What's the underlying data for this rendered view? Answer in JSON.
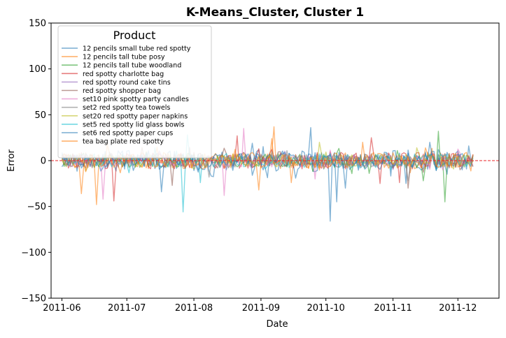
{
  "chart_data": {
    "type": "line",
    "title": "K-Means_Cluster, Cluster 1",
    "xlabel": "Date",
    "ylabel": "Error",
    "xlim": [
      "2011-05-27",
      "2011-12-20"
    ],
    "ylim": [
      -150,
      150
    ],
    "x_ticks": [
      "2011-06-01",
      "2011-07-01",
      "2011-08-01",
      "2011-09-01",
      "2011-10-01",
      "2011-11-01",
      "2011-12-01"
    ],
    "x_tick_labels": [
      "2011-06",
      "2011-07",
      "2011-08",
      "2011-09",
      "2011-10",
      "2011-11",
      "2011-12"
    ],
    "y_ticks": [
      -150,
      -100,
      -50,
      0,
      50,
      100,
      150
    ],
    "y_tick_labels": [
      "−150",
      "−100",
      "−50",
      "0",
      "50",
      "100",
      "150"
    ],
    "reference_line": {
      "y": 0,
      "color": "#e8262a",
      "style": "dashed"
    },
    "grid": false,
    "legend": {
      "title": "Product",
      "placement": "top-left"
    },
    "series": [
      {
        "name": "12 pencils small tube red spotty",
        "color": "#1f77b4",
        "start": "2011-06-01",
        "end": "2011-12-08",
        "amp": 12,
        "seed": 3,
        "spikes": [
          [
            "2011-09-24",
            36
          ],
          [
            "2011-10-03",
            -66
          ],
          [
            "2011-10-06",
            -45
          ],
          [
            "2011-10-10",
            -30
          ],
          [
            "2011-11-07",
            -25
          ],
          [
            "2011-11-22",
            12
          ]
        ]
      },
      {
        "name": "12 pencils tall tube posy",
        "color": "#ff7f0e",
        "start": "2011-06-01",
        "end": "2011-12-08",
        "amp": 9,
        "seed": 7,
        "spikes": [
          [
            "2011-06-10",
            -36
          ],
          [
            "2011-06-17",
            -48
          ],
          [
            "2011-06-22",
            18
          ],
          [
            "2011-08-31",
            -32
          ],
          [
            "2011-09-07",
            37
          ],
          [
            "2011-09-15",
            -24
          ]
        ]
      },
      {
        "name": "12 pencils tall tube woodland",
        "color": "#2ca02c",
        "start": "2011-06-01",
        "end": "2011-12-08",
        "amp": 8,
        "seed": 11,
        "spikes": [
          [
            "2011-11-22",
            32
          ],
          [
            "2011-11-25",
            -45
          ],
          [
            "2011-11-15",
            -22
          ]
        ]
      },
      {
        "name": "red spotty charlotte bag",
        "color": "#d62728",
        "start": "2011-06-01",
        "end": "2011-12-08",
        "amp": 9,
        "seed": 13,
        "spikes": [
          [
            "2011-06-25",
            -44
          ],
          [
            "2011-08-21",
            27
          ],
          [
            "2011-10-22",
            25
          ],
          [
            "2011-10-26",
            -25
          ],
          [
            "2011-11-04",
            -24
          ]
        ]
      },
      {
        "name": "red spotty round cake tins",
        "color": "#9467bd",
        "start": "2011-06-01",
        "end": "2011-12-08",
        "amp": 6,
        "seed": 17,
        "spikes": []
      },
      {
        "name": "red spotty shopper bag",
        "color": "#8c564b",
        "start": "2011-06-01",
        "end": "2011-12-08",
        "amp": 8,
        "seed": 19,
        "spikes": [
          [
            "2011-07-22",
            -27
          ],
          [
            "2011-11-08",
            -30
          ]
        ]
      },
      {
        "name": "set10 pink spotty party candles",
        "color": "#e377c2",
        "start": "2011-06-01",
        "end": "2011-12-08",
        "amp": 7,
        "seed": 23,
        "spikes": [
          [
            "2011-06-20",
            -42
          ],
          [
            "2011-08-15",
            -38
          ],
          [
            "2011-08-24",
            35
          ],
          [
            "2011-09-26",
            -20
          ]
        ]
      },
      {
        "name": "set2 red spotty tea towels",
        "color": "#7f7f7f",
        "start": "2011-06-01",
        "end": "2011-12-08",
        "amp": 7,
        "seed": 29,
        "spikes": [
          [
            "2011-08-08",
            -18
          ],
          [
            "2011-11-08",
            -22
          ]
        ]
      },
      {
        "name": "set20 red spotty paper napkins",
        "color": "#bcbd22",
        "start": "2011-06-01",
        "end": "2011-12-08",
        "amp": 7,
        "seed": 31,
        "spikes": [
          [
            "2011-09-28",
            20
          ],
          [
            "2011-11-12",
            14
          ]
        ]
      },
      {
        "name": "set5 red spotty lid glass bowls",
        "color": "#17becf",
        "start": "2011-06-01",
        "end": "2011-12-08",
        "amp": 8,
        "seed": 37,
        "spikes": [
          [
            "2011-07-27",
            -56
          ],
          [
            "2011-07-29",
            28
          ],
          [
            "2011-08-04",
            -24
          ]
        ]
      },
      {
        "name": "set6 red spotty paper cups",
        "color": "#1f77b4",
        "start": "2011-06-01",
        "end": "2011-12-08",
        "amp": 9,
        "seed": 41,
        "spikes": [
          [
            "2011-07-17",
            -34
          ],
          [
            "2011-08-28",
            -16
          ],
          [
            "2011-11-18",
            20
          ]
        ]
      },
      {
        "name": "tea bag plate red spotty",
        "color": "#ff7f0e",
        "start": "2011-06-01",
        "end": "2011-12-08",
        "amp": 8,
        "seed": 43,
        "spikes": [
          [
            "2011-09-06",
            24
          ],
          [
            "2011-10-18",
            20
          ],
          [
            "2011-12-05",
            9
          ]
        ]
      }
    ]
  }
}
